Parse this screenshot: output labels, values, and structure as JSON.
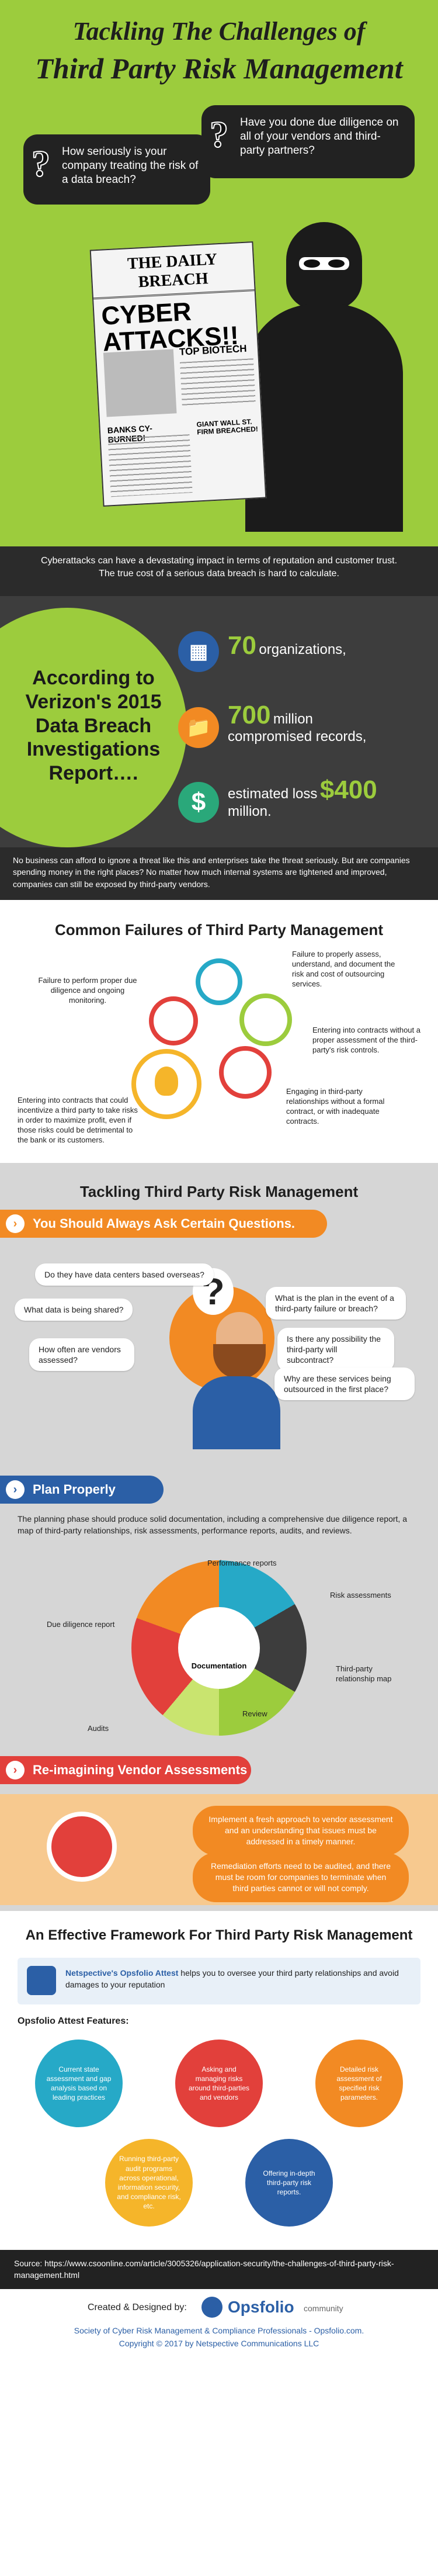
{
  "header": {
    "title_line1": "Tackling The Challenges of",
    "title_line2": "Third Party Risk Management",
    "bubble_left": "How seriously is your company treating the risk of a data breach?",
    "bubble_right": "Have you done due diligence on all of your vendors and third-party partners?",
    "paper_masthead": "THE DAILY BREACH",
    "paper_headline1": "CYBER",
    "paper_headline2": "ATTACKS!!",
    "paper_sub1": "TOP BIOTECH",
    "paper_sub2": "BANKS CY-BURNED!",
    "paper_sub3": "GIANT WALL ST. FIRM BREACHED!",
    "caption_line1": "Cyberattacks can have a devastating impact in terms of reputation and customer trust.",
    "caption_line2": "The true cost of a serious data breach is hard to calculate."
  },
  "verizon": {
    "heading_line1": "According to",
    "heading_line2": "Verizon's 2015",
    "heading_line3": "Data Breach",
    "heading_line4": "Investigations",
    "heading_line5": "Report….",
    "stat1_num": "70",
    "stat1_text": "organizations,",
    "stat2_num": "700",
    "stat2_text_a": "million",
    "stat2_text_b": "compromised records,",
    "stat3_text_a": "estimated loss",
    "stat3_num": "$400",
    "stat3_text_b": "million.",
    "footer": "No business can afford to ignore a threat like this and enterprises take the threat seriously. But are companies spending money in the right places? No matter how much internal systems are tightened and improved, companies can still be exposed by third-party vendors."
  },
  "failures": {
    "title": "Common Failures of  Third Party  Management",
    "item1": "Failure to perform proper due diligence and ongoing monitoring.",
    "item2": "Failure to properly assess, understand, and document the risk and cost of outsourcing services.",
    "item3": "Entering into contracts without a proper assessment of the third-party's risk controls.",
    "item4": "Engaging in third-party relationships without a formal contract, or with inadequate contracts.",
    "item5": "Entering into contracts that could incentivize a third party to take risks in order to maximize profit, even if those risks could be detrimental to the bank or its customers."
  },
  "tackling": {
    "title": "Tackling Third Party Risk Management",
    "banner1": "You Should Always Ask Certain Questions.",
    "q1": "Do they have data centers based overseas?",
    "q2": "What data is being shared?",
    "q3": "How often are vendors assessed?",
    "q4": "What is the plan in the event of a third-party failure or breach?",
    "q5": "Is there any possibility the third-party will subcontract?",
    "q6": "Why are these services being outsourced in the first place?",
    "banner2": "Plan Properly",
    "plan_text": "The planning phase should produce solid documentation, including a comprehensive due diligence report, a map of third-party relationships, risk assessments, performance reports, audits, and reviews.",
    "plan_center": "Documentation",
    "plan_l1": "Performance reports",
    "plan_l2": "Risk assessments",
    "plan_l3": "Due diligence report",
    "plan_l4": "Third-party relationship map",
    "plan_l5": "Audits",
    "plan_l6": "Review",
    "banner3": "Re-imagining Vendor Assessments",
    "rv1": "Implement a fresh approach to vendor assessment and an understanding that issues must be addressed in a timely manner.",
    "rv2": "Remediation efforts need to be audited, and there must be room for companies to terminate when third parties cannot or will not comply."
  },
  "framework": {
    "title": "An Effective Framework For Third Party Risk Management",
    "intro_bold": "Netspective's Opsfolio Attest",
    "intro_rest": " helps you to oversee your third party relationships and avoid damages to your reputation",
    "features_title": "Opsfolio Attest Features:",
    "f1": "Current state assessment and gap analysis based on leading practices",
    "f2": "Asking and managing risks around third-parties and vendors",
    "f3": "Detailed risk assessment of specified risk parameters.",
    "f4": "Running third-party audit programs across operational, information security, and compliance risk, etc.",
    "f5": "Offering in-depth third-party risk reports."
  },
  "footer": {
    "source": "Source:  https://www.csoonline.com/article/3005326/application-security/the-challenges-of-third-party-risk-management.html",
    "created": "Created & Designed by:",
    "brand": "Opsfolio",
    "brand_sub": "community",
    "society": "Society of Cyber Risk Management & Compliance Professionals - Opsfolio.com.",
    "copyright": "Copyright © 2017 by Netspective Communications LLC"
  },
  "colors": {
    "green": "#9ccc3d",
    "orange": "#f28a23",
    "blue": "#2b5fa6",
    "red": "#e2403b",
    "dark": "#2b2b2b",
    "teal": "#26a9c7"
  }
}
